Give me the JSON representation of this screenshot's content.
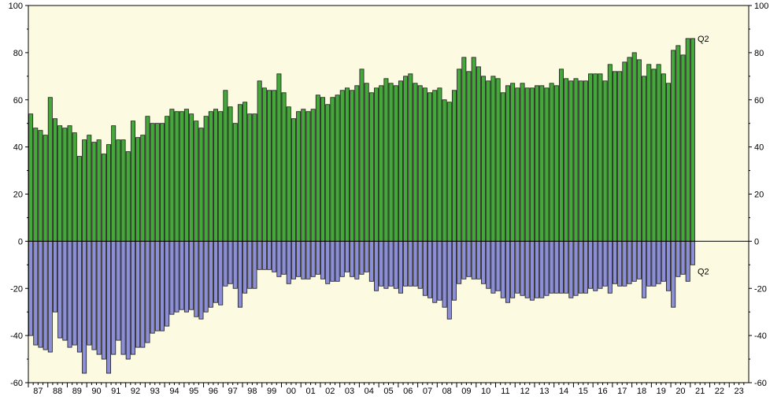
{
  "chart_data": {
    "type": "bar",
    "title": "",
    "xlabel": "",
    "ylabel": "",
    "ylim": [
      -60,
      100
    ],
    "yticks": [
      100,
      80,
      60,
      40,
      20,
      0,
      -20,
      -40,
      -60
    ],
    "year_labels": [
      "87",
      "88",
      "89",
      "90",
      "91",
      "92",
      "93",
      "94",
      "95",
      "96",
      "97",
      "98",
      "99",
      "00",
      "01",
      "02",
      "03",
      "04",
      "05",
      "06",
      "07",
      "08",
      "09",
      "10",
      "11",
      "12",
      "13",
      "14",
      "15",
      "16",
      "17",
      "18",
      "19",
      "20",
      "21",
      "22",
      "23"
    ],
    "period_start": "1987 Q1",
    "period_end": "2021 Q2",
    "series": [
      {
        "values": [
          54,
          48,
          47,
          45,
          61,
          52,
          49,
          48,
          49,
          46,
          36,
          43,
          45,
          42,
          43,
          37,
          41,
          49,
          43,
          43,
          38,
          51,
          44,
          45,
          53,
          50,
          50,
          50,
          53,
          56,
          55,
          55,
          56,
          54,
          51,
          48,
          53,
          55,
          56,
          55,
          64,
          57,
          50,
          58,
          59,
          54,
          54,
          68,
          65,
          64,
          64,
          71,
          63,
          57,
          52,
          55,
          56,
          55,
          56,
          62,
          61,
          58,
          61,
          62,
          64,
          65,
          64,
          66,
          73,
          67,
          63,
          65,
          66,
          69,
          67,
          66,
          68,
          70,
          71,
          67,
          66,
          65,
          63,
          64,
          65,
          60,
          59,
          64,
          73,
          78,
          72,
          78,
          74,
          70,
          68,
          70,
          69,
          63,
          66,
          67,
          65,
          67,
          65,
          65,
          66,
          66,
          65,
          67,
          66,
          73,
          69,
          68,
          69,
          68,
          68,
          71,
          71,
          71,
          68,
          75,
          72,
          72,
          76,
          78,
          80,
          77,
          70,
          75,
          73,
          75,
          71,
          67,
          81,
          83,
          79,
          86,
          86
        ],
        "color": "#45a83a"
      },
      {
        "values": [
          -40,
          -44,
          -45,
          -46,
          -47,
          -30,
          -41,
          -42,
          -45,
          -44,
          -47,
          -56,
          -44,
          -46,
          -48,
          -50,
          -56,
          -48,
          -42,
          -48,
          -50,
          -48,
          -45,
          -45,
          -43,
          -39,
          -38,
          -38,
          -36,
          -31,
          -30,
          -29,
          -30,
          -29,
          -32,
          -33,
          -30,
          -28,
          -26,
          -27,
          -19,
          -18,
          -20,
          -28,
          -22,
          -20,
          -20,
          -12,
          -12,
          -12,
          -13,
          -15,
          -14,
          -18,
          -16,
          -15,
          -16,
          -16,
          -15,
          -14,
          -16,
          -18,
          -17,
          -17,
          -15,
          -13,
          -15,
          -16,
          -14,
          -13,
          -17,
          -21,
          -19,
          -20,
          -19,
          -20,
          -22,
          -19,
          -19,
          -19,
          -20,
          -23,
          -24,
          -26,
          -25,
          -28,
          -33,
          -25,
          -18,
          -16,
          -15,
          -16,
          -16,
          -18,
          -20,
          -22,
          -21,
          -24,
          -26,
          -24,
          -22,
          -23,
          -24,
          -25,
          -24,
          -24,
          -23,
          -22,
          -22,
          -22,
          -22,
          -24,
          -23,
          -22,
          -22,
          -20,
          -21,
          -20,
          -19,
          -22,
          -18,
          -19,
          -19,
          -18,
          -17,
          -16,
          -24,
          -19,
          -19,
          -18,
          -17,
          -21,
          -28,
          -15,
          -14,
          -17,
          -10
        ],
        "color": "#8c8ed6"
      }
    ],
    "annotations": [
      "Q2",
      "Q2"
    ],
    "grid": false,
    "legend": "none"
  }
}
